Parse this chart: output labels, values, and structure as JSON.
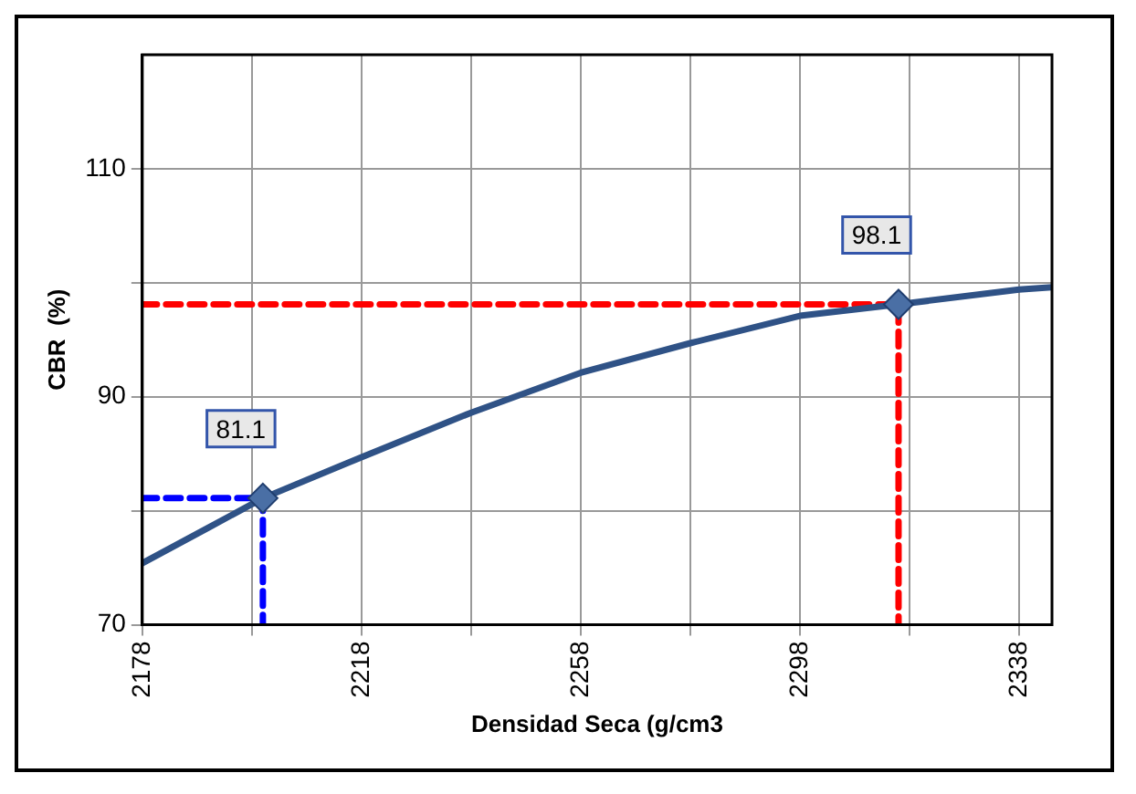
{
  "chart_data": {
    "type": "line",
    "xlabel": "Densidad Seca (g/cm3",
    "ylabel": "CBR  (%)",
    "xlim": [
      2178,
      2344
    ],
    "xticks": [
      2178,
      {
        "value": 2198,
        "label": null
      },
      2218,
      {
        "value": 2238,
        "label": null
      },
      2258,
      {
        "value": 2278,
        "label": null
      },
      2298,
      {
        "value": 2318,
        "label": null
      },
      2338
    ],
    "ylim": [
      70,
      120
    ],
    "yticks": [
      70,
      {
        "value": 80,
        "label": null
      },
      90,
      {
        "value": 100,
        "label": null
      },
      110
    ],
    "grid": true,
    "legend": false,
    "series": [
      {
        "type": "line",
        "color": "#2f5286",
        "marker": "none",
        "line_style": "solid",
        "x": [
          2178,
          2190,
          2200,
          2218,
          2238,
          2258,
          2278,
          2298,
          2316,
          2338,
          2344
        ],
        "values": [
          75.4,
          78.5,
          81.1,
          84.7,
          88.6,
          92.1,
          94.7,
          97.1,
          98.1,
          99.4,
          99.6
        ]
      },
      {
        "type": "line",
        "color": "#ff0000",
        "marker": "none",
        "line_style": "dashed",
        "x": [
          2178,
          2316,
          2316
        ],
        "values": [
          98.1,
          98.1,
          70
        ]
      },
      {
        "type": "line",
        "color": "#0000ff",
        "marker": "none",
        "line_style": "dashed",
        "x": [
          2178,
          2200,
          2200
        ],
        "values": [
          81.1,
          81.1,
          70
        ]
      },
      {
        "type": "scatter",
        "color": "#4a6fa5",
        "marker": "diamond",
        "x": [
          2200,
          2316
        ],
        "values": [
          81.1,
          98.1
        ]
      }
    ],
    "annotations": [
      {
        "text": "81.1",
        "x": 2200,
        "y": 81.1
      },
      {
        "text": "98.1",
        "x": 2316,
        "y": 98.1
      }
    ]
  }
}
